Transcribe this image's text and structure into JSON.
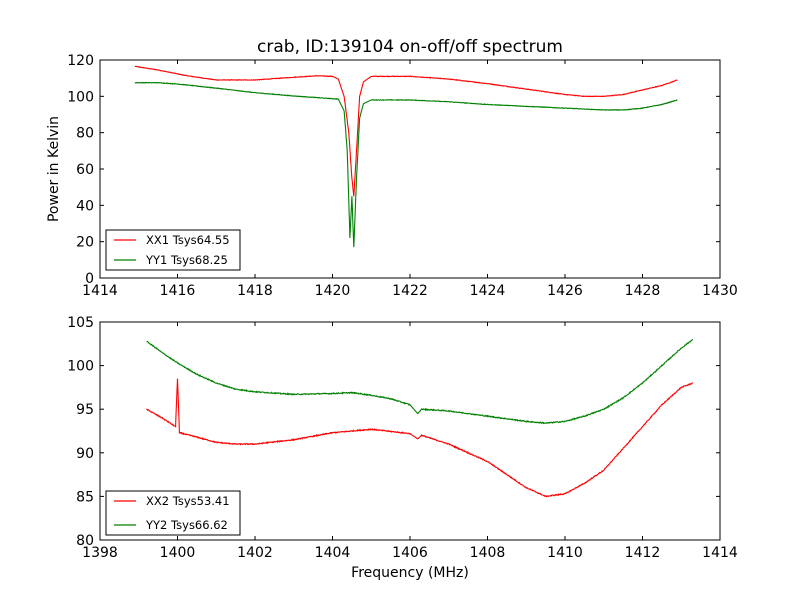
{
  "chart_data": [
    {
      "type": "line",
      "title": "crab, ID:139104 on-off/off spectrum",
      "xlabel": "",
      "ylabel": "Power in Kelvin",
      "xlim": [
        1414,
        1430
      ],
      "ylim": [
        0,
        120
      ],
      "xticks": [
        "1414",
        "1416",
        "1418",
        "1420",
        "1422",
        "1424",
        "1426",
        "1428",
        "1430"
      ],
      "yticks": [
        "0",
        "20",
        "40",
        "60",
        "80",
        "100",
        "120"
      ],
      "legend_position": "lower-left",
      "series": [
        {
          "name": "XX1 Tsys64.55",
          "color": "#ff0000",
          "points": [
            [
              1414.9,
              116.5
            ],
            [
              1415.5,
              114.5
            ],
            [
              1416.2,
              111.5
            ],
            [
              1417.0,
              109.0
            ],
            [
              1418.0,
              109.0
            ],
            [
              1419.0,
              110.5
            ],
            [
              1419.6,
              111.3
            ],
            [
              1420.0,
              111.0
            ],
            [
              1420.15,
              109.5
            ],
            [
              1420.3,
              100
            ],
            [
              1420.42,
              80
            ],
            [
              1420.5,
              55
            ],
            [
              1420.55,
              45
            ],
            [
              1420.62,
              70
            ],
            [
              1420.7,
              100
            ],
            [
              1420.8,
              108
            ],
            [
              1421.0,
              111.0
            ],
            [
              1422.0,
              111.0
            ],
            [
              1423.0,
              109.5
            ],
            [
              1424.0,
              107.0
            ],
            [
              1425.0,
              104.0
            ],
            [
              1426.0,
              101.0
            ],
            [
              1426.5,
              100.0
            ],
            [
              1427.0,
              100.0
            ],
            [
              1427.5,
              101.0
            ],
            [
              1428.0,
              103.5
            ],
            [
              1428.5,
              106.0
            ],
            [
              1428.9,
              109.0
            ]
          ]
        },
        {
          "name": "YY1 Tsys68.25",
          "color": "#008000",
          "points": [
            [
              1414.9,
              107.5
            ],
            [
              1415.5,
              107.5
            ],
            [
              1416.0,
              106.8
            ],
            [
              1417.0,
              104.5
            ],
            [
              1418.0,
              102.0
            ],
            [
              1419.0,
              100.2
            ],
            [
              1419.8,
              99.0
            ],
            [
              1420.15,
              98.5
            ],
            [
              1420.3,
              92
            ],
            [
              1420.38,
              70
            ],
            [
              1420.45,
              22
            ],
            [
              1420.5,
              45
            ],
            [
              1420.55,
              17
            ],
            [
              1420.62,
              55
            ],
            [
              1420.7,
              88
            ],
            [
              1420.8,
              96
            ],
            [
              1421.0,
              98.0
            ],
            [
              1422.0,
              98.0
            ],
            [
              1423.0,
              97.0
            ],
            [
              1424.0,
              95.5
            ],
            [
              1425.0,
              94.5
            ],
            [
              1426.0,
              93.5
            ],
            [
              1427.0,
              92.5
            ],
            [
              1427.5,
              92.5
            ],
            [
              1428.0,
              93.5
            ],
            [
              1428.5,
              95.5
            ],
            [
              1428.9,
              98.0
            ]
          ]
        }
      ]
    },
    {
      "type": "line",
      "title": "",
      "xlabel": "Frequency (MHz)",
      "ylabel": "",
      "xlim": [
        1398,
        1414
      ],
      "ylim": [
        80,
        105
      ],
      "xticks": [
        "1398",
        "1400",
        "1402",
        "1404",
        "1406",
        "1408",
        "1410",
        "1412",
        "1414"
      ],
      "yticks": [
        "80",
        "85",
        "90",
        "95",
        "100",
        "105"
      ],
      "legend_position": "lower-left",
      "series": [
        {
          "name": "XX2 Tsys53.41",
          "color": "#ff0000",
          "points": [
            [
              1399.2,
              95.0
            ],
            [
              1399.6,
              94.0
            ],
            [
              1399.95,
              93.0
            ],
            [
              1400.0,
              98.5
            ],
            [
              1400.05,
              92.3
            ],
            [
              1400.5,
              91.8
            ],
            [
              1401.0,
              91.2
            ],
            [
              1401.5,
              91.0
            ],
            [
              1402.0,
              91.0
            ],
            [
              1403.0,
              91.5
            ],
            [
              1404.0,
              92.3
            ],
            [
              1405.0,
              92.7
            ],
            [
              1406.0,
              92.2
            ],
            [
              1406.2,
              91.6
            ],
            [
              1406.3,
              92.0
            ],
            [
              1407.0,
              91.0
            ],
            [
              1408.0,
              89.0
            ],
            [
              1408.5,
              87.5
            ],
            [
              1409.0,
              86.0
            ],
            [
              1409.5,
              85.0
            ],
            [
              1410.0,
              85.3
            ],
            [
              1410.5,
              86.5
            ],
            [
              1411.0,
              88.0
            ],
            [
              1411.5,
              90.5
            ],
            [
              1412.0,
              93.0
            ],
            [
              1412.5,
              95.5
            ],
            [
              1413.0,
              97.5
            ],
            [
              1413.3,
              98.0
            ]
          ]
        },
        {
          "name": "YY2 Tsys66.62",
          "color": "#008000",
          "points": [
            [
              1399.2,
              102.8
            ],
            [
              1399.6,
              101.5
            ],
            [
              1400.0,
              100.3
            ],
            [
              1400.5,
              99.0
            ],
            [
              1401.0,
              98.0
            ],
            [
              1401.5,
              97.3
            ],
            [
              1402.0,
              97.0
            ],
            [
              1403.0,
              96.7
            ],
            [
              1404.0,
              96.8
            ],
            [
              1404.5,
              96.9
            ],
            [
              1405.0,
              96.6
            ],
            [
              1405.5,
              96.2
            ],
            [
              1406.0,
              95.5
            ],
            [
              1406.2,
              94.5
            ],
            [
              1406.3,
              95.0
            ],
            [
              1407.0,
              94.8
            ],
            [
              1408.0,
              94.2
            ],
            [
              1409.0,
              93.6
            ],
            [
              1409.5,
              93.4
            ],
            [
              1410.0,
              93.6
            ],
            [
              1410.5,
              94.2
            ],
            [
              1411.0,
              95.0
            ],
            [
              1411.5,
              96.3
            ],
            [
              1412.0,
              98.0
            ],
            [
              1412.5,
              100.0
            ],
            [
              1413.0,
              102.0
            ],
            [
              1413.3,
              103.0
            ]
          ]
        }
      ]
    }
  ]
}
